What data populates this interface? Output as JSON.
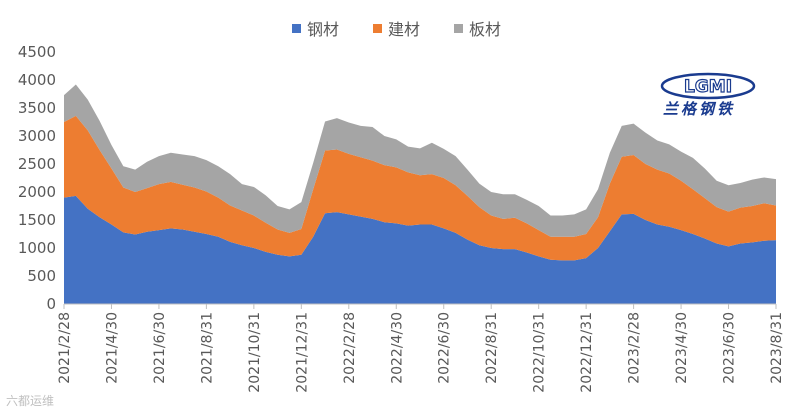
{
  "legend": {
    "series1": "钢材",
    "series2": "建材",
    "series3": "板材"
  },
  "logo": {
    "brand": "LGMI",
    "caption": "兰格钢铁"
  },
  "watermark": "六都运维",
  "colors": {
    "series1": "#4472c4",
    "series2": "#ed7d31",
    "series3": "#a5a5a5",
    "axis": "#bfbfbf",
    "text": "#595959"
  },
  "chart_data": {
    "type": "area",
    "stacked": true,
    "ylim": [
      0,
      4500
    ],
    "yticks": [
      0,
      500,
      1000,
      1500,
      2000,
      2500,
      3000,
      3500,
      4000,
      4500
    ],
    "x_tick_labels": [
      "2021/2/28",
      "2021/4/30",
      "2021/6/30",
      "2021/8/31",
      "2021/10/31",
      "2021/12/31",
      "2022/2/28",
      "2022/4/30",
      "2022/6/30",
      "2022/8/31",
      "2022/10/31",
      "2022/12/31",
      "2023/2/28",
      "2023/4/30",
      "2023/6/30",
      "2023/8/31"
    ],
    "x": [
      "2021/2/28",
      "2021/3/15",
      "2021/3/31",
      "2021/4/15",
      "2021/4/30",
      "2021/5/15",
      "2021/5/31",
      "2021/6/15",
      "2021/6/30",
      "2021/7/15",
      "2021/7/31",
      "2021/8/15",
      "2021/8/31",
      "2021/9/15",
      "2021/9/30",
      "2021/10/15",
      "2021/10/31",
      "2021/11/15",
      "2021/11/30",
      "2021/12/15",
      "2021/12/31",
      "2022/1/15",
      "2022/1/31",
      "2022/2/15",
      "2022/2/28",
      "2022/3/15",
      "2022/3/31",
      "2022/4/15",
      "2022/4/30",
      "2022/5/15",
      "2022/5/31",
      "2022/6/15",
      "2022/6/30",
      "2022/7/15",
      "2022/7/31",
      "2022/8/15",
      "2022/8/31",
      "2022/9/15",
      "2022/9/30",
      "2022/10/15",
      "2022/10/31",
      "2022/11/15",
      "2022/11/30",
      "2022/12/15",
      "2022/12/31",
      "2023/1/15",
      "2023/1/31",
      "2023/2/15",
      "2023/2/28",
      "2023/3/15",
      "2023/3/31",
      "2023/4/15",
      "2023/4/30",
      "2023/5/15",
      "2023/5/31",
      "2023/6/15",
      "2023/6/30",
      "2023/7/15",
      "2023/7/31",
      "2023/8/15",
      "2023/8/31"
    ],
    "series": [
      {
        "name": "钢材",
        "values": [
          1900,
          1930,
          1700,
          1550,
          1420,
          1280,
          1240,
          1290,
          1320,
          1350,
          1330,
          1290,
          1250,
          1200,
          1110,
          1050,
          1000,
          930,
          880,
          850,
          880,
          1200,
          1620,
          1640,
          1600,
          1560,
          1520,
          1460,
          1440,
          1400,
          1420,
          1420,
          1350,
          1270,
          1150,
          1050,
          1000,
          980,
          980,
          920,
          850,
          790,
          780,
          780,
          820,
          1000,
          1300,
          1600,
          1610,
          1500,
          1420,
          1380,
          1320,
          1250,
          1170,
          1080,
          1030,
          1080,
          1100,
          1130,
          1140
        ]
      },
      {
        "name": "建材",
        "values": [
          1350,
          1430,
          1400,
          1200,
          1000,
          800,
          760,
          780,
          820,
          830,
          800,
          790,
          760,
          700,
          650,
          620,
          580,
          520,
          450,
          420,
          460,
          850,
          1120,
          1120,
          1080,
          1060,
          1040,
          1020,
          1000,
          950,
          880,
          900,
          900,
          850,
          780,
          680,
          580,
          540,
          560,
          520,
          470,
          410,
          420,
          420,
          430,
          550,
          850,
          1030,
          1050,
          1000,
          980,
          950,
          880,
          800,
          720,
          650,
          620,
          640,
          650,
          670,
          620
        ]
      },
      {
        "name": "板材",
        "values": [
          480,
          560,
          550,
          520,
          420,
          380,
          400,
          470,
          500,
          520,
          540,
          560,
          560,
          560,
          560,
          470,
          510,
          490,
          420,
          420,
          480,
          470,
          520,
          560,
          560,
          560,
          600,
          520,
          500,
          460,
          480,
          560,
          520,
          520,
          470,
          420,
          420,
          440,
          420,
          420,
          430,
          380,
          380,
          400,
          440,
          500,
          550,
          550,
          560,
          560,
          520,
          520,
          520,
          560,
          530,
          470,
          470,
          440,
          470,
          460,
          470
        ]
      }
    ]
  }
}
